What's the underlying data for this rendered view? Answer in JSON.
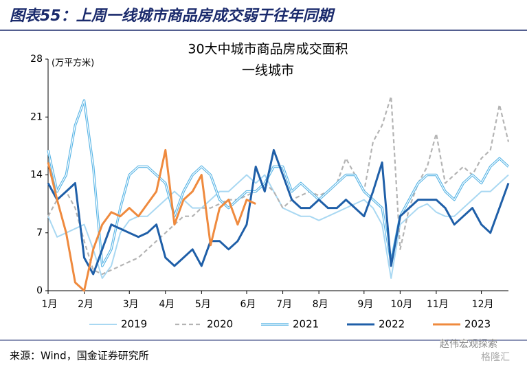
{
  "header": {
    "title": "图表55：上周一线城市商品房成交弱于往年同期"
  },
  "chart_data": {
    "type": "line",
    "title": "30大中城市商品房成交面积",
    "subtitle": "一线城市",
    "y_label": "(万平方米)",
    "categories": [
      "1月",
      null,
      null,
      null,
      "2月",
      null,
      null,
      null,
      null,
      "3月",
      null,
      null,
      null,
      "4月",
      null,
      null,
      null,
      "5月",
      null,
      null,
      null,
      null,
      "6月",
      null,
      null,
      null,
      "7月",
      null,
      null,
      null,
      "8月",
      null,
      null,
      null,
      null,
      "9月",
      null,
      null,
      null,
      "10月",
      null,
      null,
      null,
      "11月",
      null,
      null,
      null,
      null,
      "12月",
      null,
      null,
      null
    ],
    "ylim": [
      0,
      28
    ],
    "yticks": [
      0,
      7,
      14,
      21,
      28
    ],
    "grid": false,
    "legend": "bottom",
    "series": [
      {
        "name": "2019",
        "color": "#a9d8f2",
        "style": "thin",
        "values": [
          9,
          6.5,
          7,
          7.5,
          8,
          5,
          1.5,
          3,
          7,
          8.5,
          9,
          9,
          10,
          11,
          12,
          11,
          10,
          10,
          11,
          12,
          12,
          13,
          14,
          13,
          14,
          12,
          10,
          9.5,
          9,
          9,
          8.5,
          9,
          9.5,
          10,
          10.5,
          11,
          10,
          8,
          1.5,
          8,
          9,
          10,
          10.5,
          9.5,
          9,
          9,
          10,
          11,
          12,
          12,
          13,
          14
        ]
      },
      {
        "name": "2020",
        "color": "#b4b4b4",
        "style": "dashed",
        "values": [
          9,
          11,
          12,
          10,
          6,
          2.5,
          2,
          2.5,
          3,
          3.5,
          4,
          5,
          6,
          7,
          8,
          9,
          9,
          10,
          10,
          10.5,
          11,
          11,
          11.5,
          12,
          13,
          12,
          10,
          11,
          11.5,
          12,
          11.5,
          12,
          13,
          16,
          14,
          12,
          18,
          20,
          23.5,
          5,
          10,
          13,
          15,
          19,
          13,
          14,
          15,
          14,
          16,
          17,
          22.5,
          18
        ]
      },
      {
        "name": "2021",
        "color": "#5bb6e6",
        "style": "double",
        "values": [
          17,
          12,
          14,
          20,
          23,
          15,
          3,
          5,
          10,
          14,
          15,
          15,
          14,
          13,
          9,
          12,
          14,
          15,
          14,
          11,
          10,
          11,
          12,
          12,
          13,
          15,
          15,
          12,
          13,
          12,
          11,
          12,
          13,
          14,
          14,
          12,
          11,
          10,
          3.5,
          9,
          11,
          13,
          14,
          14,
          12,
          11,
          13,
          14,
          13,
          15,
          16,
          15
        ]
      },
      {
        "name": "2022",
        "color": "#1f5fa8",
        "style": "thick",
        "values": [
          13,
          11,
          12,
          13,
          4,
          2,
          5,
          8,
          7.5,
          7,
          6.5,
          7,
          8,
          4,
          3,
          4,
          5,
          3,
          6,
          6,
          5,
          6,
          8,
          15,
          12,
          17,
          14,
          11,
          10,
          10,
          11,
          10,
          10,
          11,
          10,
          9,
          12,
          15.5,
          3,
          9,
          10,
          11,
          11,
          11,
          10,
          8,
          9,
          10,
          8,
          7,
          10,
          13
        ]
      },
      {
        "name": "2023",
        "color": "#ef8a3e",
        "style": "thick",
        "values": [
          15.5,
          11,
          7,
          1,
          0,
          5,
          8,
          9.5,
          9,
          10,
          9,
          10.5,
          12,
          17,
          8,
          11,
          12,
          14,
          5.5,
          10,
          11,
          8,
          11,
          10.5,
          null,
          null,
          null,
          null,
          null,
          null,
          null,
          null,
          null,
          null,
          null,
          null,
          null,
          null,
          null,
          null,
          null,
          null,
          null,
          null,
          null,
          null,
          null,
          null,
          null,
          null,
          null,
          null
        ]
      }
    ]
  },
  "footer": {
    "source": "来源：Wind，国金证券研究所",
    "watermark": "赵伟宏观探索",
    "watermark2": "格隆汇"
  }
}
